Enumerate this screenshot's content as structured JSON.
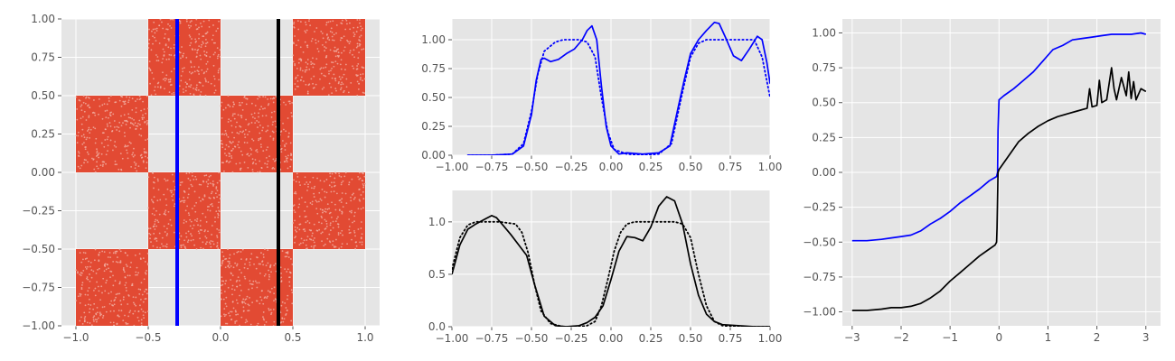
{
  "style": {
    "panel_bg": "#e5e5e5",
    "grid": "#ffffff",
    "tick_color": "#555555",
    "fill_red": "#e24a33",
    "blue": "#0000ff",
    "black": "#000000"
  },
  "chart_data": [
    {
      "id": "checkerboard",
      "type": "scatter",
      "grid": true,
      "xlim": [
        -1.1,
        1.1
      ],
      "ylim": [
        -1.0,
        1.0
      ],
      "xticks": [
        -1.0,
        -0.5,
        0.0,
        0.5,
        1.0
      ],
      "xtick_labels": [
        "−1.0",
        "−0.5",
        "0.0",
        "0.5",
        "1.0"
      ],
      "yticks": [
        -1.0,
        -0.75,
        -0.5,
        -0.25,
        0.0,
        0.25,
        0.5,
        0.75,
        1.0
      ],
      "ytick_labels": [
        "−1.00",
        "−0.75",
        "−0.50",
        "−0.25",
        "0.00",
        "0.25",
        "0.50",
        "0.75",
        "1.00"
      ],
      "filled_squares": [
        {
          "x": [
            -0.5,
            0.0
          ],
          "y": [
            0.5,
            1.0
          ]
        },
        {
          "x": [
            0.5,
            1.0
          ],
          "y": [
            0.5,
            1.0
          ]
        },
        {
          "x": [
            -1.0,
            -0.5
          ],
          "y": [
            0.0,
            0.5
          ]
        },
        {
          "x": [
            0.0,
            0.5
          ],
          "y": [
            0.0,
            0.5
          ]
        },
        {
          "x": [
            -0.5,
            0.0
          ],
          "y": [
            -0.5,
            0.0
          ]
        },
        {
          "x": [
            0.5,
            1.0
          ],
          "y": [
            -0.5,
            0.0
          ]
        },
        {
          "x": [
            -1.0,
            -0.5
          ],
          "y": [
            -1.0,
            -0.5
          ]
        },
        {
          "x": [
            0.0,
            0.5
          ],
          "y": [
            -1.0,
            -0.5
          ]
        }
      ],
      "vertical_lines": [
        {
          "x": -0.3,
          "color": "#0000ff"
        },
        {
          "x": 0.4,
          "color": "#000000"
        }
      ]
    },
    {
      "id": "density-top",
      "type": "line",
      "grid": true,
      "xlim": [
        -1.0,
        1.0
      ],
      "ylim": [
        0.0,
        1.18
      ],
      "xticks": [
        -1.0,
        -0.75,
        -0.5,
        -0.25,
        0.0,
        0.25,
        0.5,
        0.75,
        1.0
      ],
      "xtick_labels": [
        "−1.00",
        "−0.75",
        "−0.50",
        "−0.25",
        "0.00",
        "0.25",
        "0.50",
        "0.75",
        "1.00"
      ],
      "yticks": [
        0.0,
        0.25,
        0.5,
        0.75,
        1.0
      ],
      "ytick_labels": [
        "0.00",
        "0.25",
        "0.50",
        "0.75",
        "1.00"
      ],
      "series": [
        {
          "style": "solid",
          "color": "#0000ff",
          "x": [
            -0.9,
            -0.75,
            -0.62,
            -0.55,
            -0.5,
            -0.47,
            -0.44,
            -0.42,
            -0.38,
            -0.33,
            -0.28,
            -0.23,
            -0.18,
            -0.15,
            -0.12,
            -0.09,
            -0.06,
            -0.03,
            0.0,
            0.05,
            0.1,
            0.2,
            0.3,
            0.37,
            0.42,
            0.46,
            0.5,
            0.55,
            0.6,
            0.65,
            0.68,
            0.72,
            0.77,
            0.82,
            0.87,
            0.92,
            0.95,
            0.98,
            1.0
          ],
          "y": [
            0.0,
            0.0,
            0.01,
            0.08,
            0.35,
            0.65,
            0.83,
            0.84,
            0.81,
            0.83,
            0.88,
            0.92,
            1.0,
            1.08,
            1.12,
            1.0,
            0.6,
            0.25,
            0.08,
            0.01,
            0.02,
            0.01,
            0.02,
            0.08,
            0.4,
            0.65,
            0.88,
            1.0,
            1.08,
            1.15,
            1.14,
            1.02,
            0.86,
            0.82,
            0.92,
            1.03,
            1.0,
            0.8,
            0.62
          ]
        },
        {
          "style": "dotted",
          "color": "#0000ff",
          "x": [
            -0.9,
            -0.75,
            -0.62,
            -0.55,
            -0.5,
            -0.46,
            -0.42,
            -0.35,
            -0.3,
            -0.2,
            -0.15,
            -0.1,
            -0.06,
            -0.02,
            0.02,
            0.1,
            0.2,
            0.3,
            0.38,
            0.45,
            0.5,
            0.55,
            0.6,
            0.7,
            0.8,
            0.9,
            0.95,
            1.0
          ],
          "y": [
            0.0,
            0.0,
            0.01,
            0.1,
            0.38,
            0.7,
            0.9,
            0.98,
            1.0,
            1.0,
            0.98,
            0.85,
            0.5,
            0.2,
            0.05,
            0.01,
            0.0,
            0.01,
            0.1,
            0.55,
            0.85,
            0.97,
            1.0,
            1.0,
            1.0,
            1.0,
            0.85,
            0.5
          ]
        }
      ]
    },
    {
      "id": "density-bottom",
      "type": "line",
      "grid": true,
      "xlim": [
        -1.0,
        1.0
      ],
      "ylim": [
        0.0,
        1.3
      ],
      "xticks": [
        -1.0,
        -0.75,
        -0.5,
        -0.25,
        0.0,
        0.25,
        0.5,
        0.75,
        1.0
      ],
      "xtick_labels": [
        "−1.00",
        "−0.75",
        "−0.50",
        "−0.25",
        "0.00",
        "0.25",
        "0.50",
        "0.75",
        "1.00"
      ],
      "yticks": [
        0.0,
        0.5,
        1.0
      ],
      "ytick_labels": [
        "0.0",
        "0.5",
        "1.0"
      ],
      "series": [
        {
          "style": "solid",
          "color": "#000000",
          "x": [
            -1.0,
            -0.95,
            -0.9,
            -0.85,
            -0.8,
            -0.75,
            -0.72,
            -0.68,
            -0.63,
            -0.58,
            -0.53,
            -0.48,
            -0.42,
            -0.35,
            -0.28,
            -0.2,
            -0.15,
            -0.1,
            -0.05,
            0.0,
            0.05,
            0.1,
            0.15,
            0.2,
            0.25,
            0.3,
            0.35,
            0.4,
            0.45,
            0.5,
            0.55,
            0.6,
            0.65,
            0.7,
            0.8,
            0.9,
            1.0
          ],
          "y": [
            0.5,
            0.78,
            0.93,
            0.98,
            1.02,
            1.06,
            1.04,
            0.97,
            0.88,
            0.78,
            0.68,
            0.4,
            0.1,
            0.01,
            0.0,
            0.01,
            0.04,
            0.09,
            0.2,
            0.45,
            0.72,
            0.86,
            0.85,
            0.82,
            0.95,
            1.15,
            1.24,
            1.2,
            0.98,
            0.6,
            0.3,
            0.12,
            0.05,
            0.02,
            0.01,
            0.0,
            0.0
          ]
        },
        {
          "style": "dotted",
          "color": "#000000",
          "x": [
            -1.0,
            -0.95,
            -0.9,
            -0.85,
            -0.8,
            -0.7,
            -0.6,
            -0.56,
            -0.52,
            -0.48,
            -0.44,
            -0.38,
            -0.3,
            -0.2,
            -0.15,
            -0.1,
            -0.06,
            -0.02,
            0.02,
            0.06,
            0.1,
            0.15,
            0.2,
            0.3,
            0.4,
            0.45,
            0.5,
            0.55,
            0.6,
            0.65,
            0.7,
            0.8,
            1.0
          ],
          "y": [
            0.55,
            0.85,
            0.97,
            1.0,
            1.0,
            1.0,
            0.98,
            0.9,
            0.7,
            0.4,
            0.15,
            0.03,
            0.0,
            0.0,
            0.01,
            0.05,
            0.2,
            0.45,
            0.72,
            0.9,
            0.98,
            1.0,
            1.0,
            1.0,
            1.0,
            0.98,
            0.85,
            0.5,
            0.2,
            0.05,
            0.01,
            0.0,
            0.0
          ]
        }
      ]
    },
    {
      "id": "cdf-curves",
      "type": "line",
      "grid": true,
      "xlim": [
        -3.2,
        3.3
      ],
      "ylim": [
        -1.1,
        1.1
      ],
      "xticks": [
        -3,
        -2,
        -1,
        0,
        1,
        2,
        3
      ],
      "xtick_labels": [
        "−3",
        "−2",
        "−1",
        "0",
        "1",
        "2",
        "3"
      ],
      "yticks": [
        -1.0,
        -0.75,
        -0.5,
        -0.25,
        0.0,
        0.25,
        0.5,
        0.75,
        1.0
      ],
      "ytick_labels": [
        "−1.00",
        "−0.75",
        "−0.50",
        "−0.25",
        "0.00",
        "0.25",
        "0.50",
        "0.75",
        "1.00"
      ],
      "series": [
        {
          "style": "solid",
          "color": "#0000ff",
          "x": [
            -3.0,
            -2.7,
            -2.4,
            -2.2,
            -2.0,
            -1.8,
            -1.6,
            -1.4,
            -1.2,
            -1.0,
            -0.8,
            -0.6,
            -0.4,
            -0.2,
            -0.05,
            -0.03,
            -0.02,
            0.0,
            0.1,
            0.3,
            0.5,
            0.7,
            0.9,
            1.1,
            1.3,
            1.5,
            1.7,
            1.9,
            2.1,
            2.3,
            2.5,
            2.7,
            2.9,
            3.0
          ],
          "y": [
            -0.49,
            -0.49,
            -0.48,
            -0.47,
            -0.46,
            -0.45,
            -0.42,
            -0.37,
            -0.33,
            -0.28,
            -0.22,
            -0.17,
            -0.12,
            -0.06,
            -0.03,
            0.0,
            0.3,
            0.52,
            0.55,
            0.6,
            0.66,
            0.72,
            0.8,
            0.88,
            0.91,
            0.95,
            0.96,
            0.97,
            0.98,
            0.99,
            0.99,
            0.99,
            1.0,
            0.99
          ]
        },
        {
          "style": "solid",
          "color": "#000000",
          "x": [
            -3.0,
            -2.7,
            -2.4,
            -2.2,
            -2.0,
            -1.8,
            -1.6,
            -1.4,
            -1.2,
            -1.0,
            -0.8,
            -0.6,
            -0.4,
            -0.2,
            -0.08,
            -0.05,
            -0.04,
            -0.02,
            0.0,
            0.2,
            0.4,
            0.6,
            0.8,
            1.0,
            1.2,
            1.4,
            1.6,
            1.8,
            1.85,
            1.9,
            2.0,
            2.05,
            2.1,
            2.2,
            2.3,
            2.35,
            2.4,
            2.5,
            2.6,
            2.65,
            2.7,
            2.75,
            2.8,
            2.9,
            3.0
          ],
          "y": [
            -0.99,
            -0.99,
            -0.98,
            -0.97,
            -0.97,
            -0.96,
            -0.94,
            -0.9,
            -0.85,
            -0.78,
            -0.72,
            -0.66,
            -0.6,
            -0.55,
            -0.52,
            -0.5,
            -0.4,
            0.0,
            0.02,
            0.12,
            0.22,
            0.28,
            0.33,
            0.37,
            0.4,
            0.42,
            0.44,
            0.46,
            0.6,
            0.47,
            0.48,
            0.66,
            0.5,
            0.52,
            0.75,
            0.6,
            0.52,
            0.68,
            0.55,
            0.72,
            0.53,
            0.65,
            0.52,
            0.6,
            0.58
          ]
        }
      ]
    }
  ]
}
